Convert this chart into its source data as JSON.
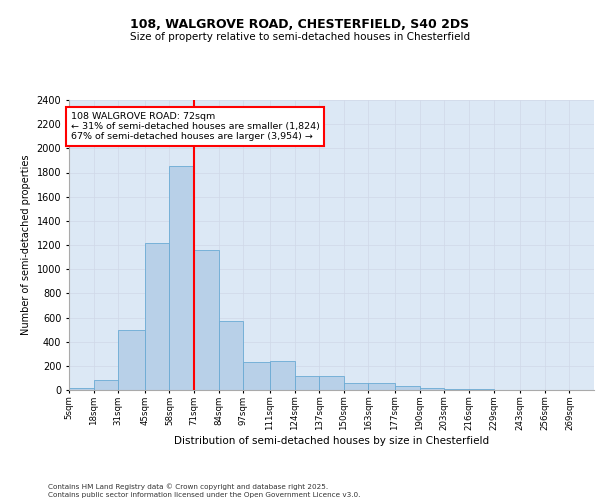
{
  "title_line1": "108, WALGROVE ROAD, CHESTERFIELD, S40 2DS",
  "title_line2": "Size of property relative to semi-detached houses in Chesterfield",
  "xlabel": "Distribution of semi-detached houses by size in Chesterfield",
  "ylabel": "Number of semi-detached properties",
  "property_label": "108 WALGROVE ROAD: 72sqm",
  "smaller_pct": 31,
  "smaller_count": 1824,
  "larger_pct": 67,
  "larger_count": 3954,
  "bin_labels": [
    "5sqm",
    "18sqm",
    "31sqm",
    "45sqm",
    "58sqm",
    "71sqm",
    "84sqm",
    "97sqm",
    "111sqm",
    "124sqm",
    "137sqm",
    "150sqm",
    "163sqm",
    "177sqm",
    "190sqm",
    "203sqm",
    "216sqm",
    "229sqm",
    "243sqm",
    "256sqm",
    "269sqm"
  ],
  "bin_edges": [
    5,
    18,
    31,
    45,
    58,
    71,
    84,
    97,
    111,
    124,
    137,
    150,
    163,
    177,
    190,
    203,
    216,
    229,
    243,
    256,
    269,
    282
  ],
  "bar_heights": [
    20,
    80,
    500,
    1220,
    1850,
    1160,
    570,
    230,
    240,
    120,
    120,
    60,
    60,
    30,
    20,
    10,
    5,
    0,
    0,
    0,
    0
  ],
  "bar_color": "#b8d0e8",
  "bar_edge_color": "#6aaad4",
  "vline_color": "red",
  "vline_x": 71,
  "ylim": [
    0,
    2400
  ],
  "yticks": [
    0,
    200,
    400,
    600,
    800,
    1000,
    1200,
    1400,
    1600,
    1800,
    2000,
    2200,
    2400
  ],
  "grid_color": "#d0d8e8",
  "bg_color": "#dce8f5",
  "footer_line1": "Contains HM Land Registry data © Crown copyright and database right 2025.",
  "footer_line2": "Contains public sector information licensed under the Open Government Licence v3.0."
}
